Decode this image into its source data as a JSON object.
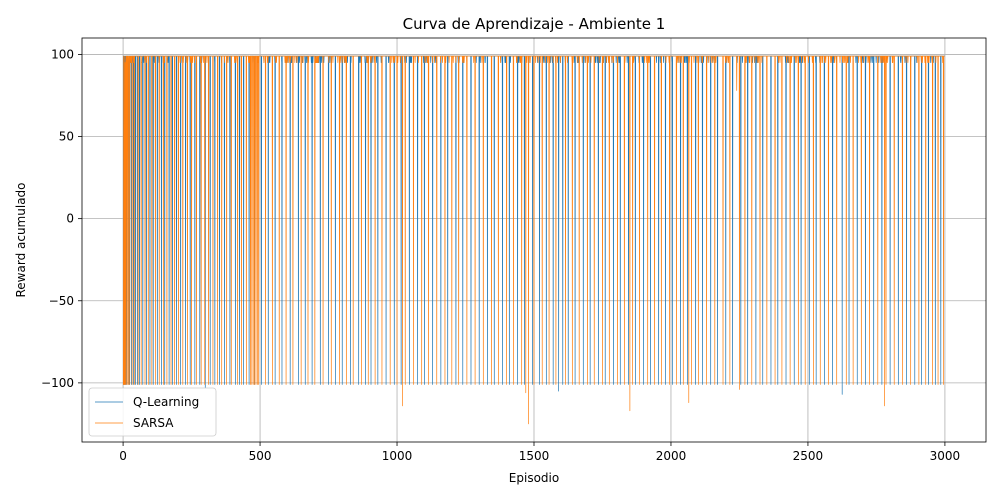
{
  "chart_data": {
    "type": "line",
    "title": "Curva de Aprendizaje - Ambiente 1",
    "xlabel": "Episodio",
    "ylabel": "Reward acumulado",
    "xlim": [
      -150,
      3150
    ],
    "ylim": [
      -136,
      110
    ],
    "xticks": [
      0,
      500,
      1000,
      1500,
      2000,
      2500,
      3000
    ],
    "xtick_labels": [
      "0",
      "500",
      "1000",
      "1500",
      "2000",
      "2500",
      "3000"
    ],
    "yticks": [
      -100,
      -50,
      0,
      50,
      100
    ],
    "ytick_labels": [
      "−100",
      "−50",
      "0",
      "50",
      "100"
    ],
    "grid": true,
    "legend_position": "lower-left",
    "n_episodes": 3000,
    "series": [
      {
        "name": "Q-Learning",
        "color": "#1f77b4",
        "baseline": 99,
        "failure_value": -101,
        "failure_episodes": [
          2,
          5,
          9,
          14,
          22,
          30,
          38,
          45,
          52,
          60,
          72,
          85,
          98,
          110,
          125,
          140,
          152,
          168,
          180,
          195,
          210,
          228,
          245,
          262,
          280,
          300,
          318,
          335,
          352,
          370,
          390,
          410,
          425,
          440,
          460,
          480,
          505,
          530,
          555,
          580,
          610,
          640,
          665,
          690,
          720,
          750,
          775,
          800,
          830,
          860,
          885,
          905,
          930,
          960,
          990,
          1015,
          1045,
          1075,
          1100,
          1130,
          1160,
          1185,
          1215,
          1240,
          1270,
          1300,
          1330,
          1355,
          1385,
          1410,
          1440,
          1465,
          1495,
          1520,
          1545,
          1570,
          1590,
          1605,
          1625,
          1650,
          1680,
          1705,
          1735,
          1760,
          1790,
          1815,
          1845,
          1870,
          1900,
          1925,
          1955,
          1980,
          2005,
          2035,
          2060,
          2090,
          2115,
          2145,
          2170,
          2200,
          2225,
          2255,
          2280,
          2310,
          2335,
          2365,
          2390,
          2420,
          2450,
          2475,
          2505,
          2530,
          2560,
          2590,
          2625,
          2650,
          2680,
          2710,
          2740,
          2770,
          2800,
          2830,
          2860,
          2890,
          2915,
          2940,
          2965,
          2985
        ],
        "dips": [
          {
            "episode": 1590,
            "value": -105
          },
          {
            "episode": 2625,
            "value": -107
          },
          {
            "episode": 300,
            "value": -103
          }
        ]
      },
      {
        "name": "SARSA",
        "color": "#ff7f0e",
        "baseline": 99,
        "failure_value": -101,
        "failure_episodes": [
          0,
          1,
          3,
          4,
          6,
          8,
          11,
          15,
          19,
          24,
          33,
          41,
          55,
          66,
          80,
          92,
          105,
          118,
          132,
          147,
          160,
          175,
          188,
          202,
          218,
          235,
          250,
          268,
          285,
          298,
          312,
          328,
          345,
          360,
          378,
          395,
          418,
          432,
          450,
          465,
          470,
          475,
          480,
          485,
          490,
          495,
          520,
          545,
          570,
          595,
          620,
          650,
          675,
          700,
          730,
          760,
          790,
          815,
          840,
          870,
          895,
          920,
          945,
          975,
          1000,
          1030,
          1060,
          1090,
          1115,
          1145,
          1175,
          1200,
          1225,
          1255,
          1285,
          1315,
          1345,
          1370,
          1400,
          1425,
          1455,
          1480,
          1500,
          1530,
          1555,
          1580,
          1615,
          1640,
          1665,
          1695,
          1720,
          1750,
          1775,
          1805,
          1830,
          1860,
          1885,
          1915,
          1940,
          1965,
          1995,
          2020,
          2045,
          2075,
          2100,
          2130,
          2160,
          2190,
          2215,
          2240,
          2270,
          2295,
          2325,
          2350,
          2380,
          2405,
          2435,
          2465,
          2490,
          2520,
          2545,
          2575,
          2605,
          2640,
          2665,
          2695,
          2725,
          2755,
          2785,
          2815,
          2845,
          2875,
          2905,
          2930,
          2955,
          2975,
          2995
        ],
        "dips": [
          {
            "episode": 1480,
            "value": -125
          },
          {
            "episode": 1020,
            "value": -114
          },
          {
            "episode": 1850,
            "value": -117
          },
          {
            "episode": 2065,
            "value": -112
          },
          {
            "episode": 2780,
            "value": -114
          },
          {
            "episode": 2240,
            "value": 78
          },
          {
            "episode": 1470,
            "value": -106
          },
          {
            "episode": 2250,
            "value": -104
          }
        ]
      }
    ]
  }
}
